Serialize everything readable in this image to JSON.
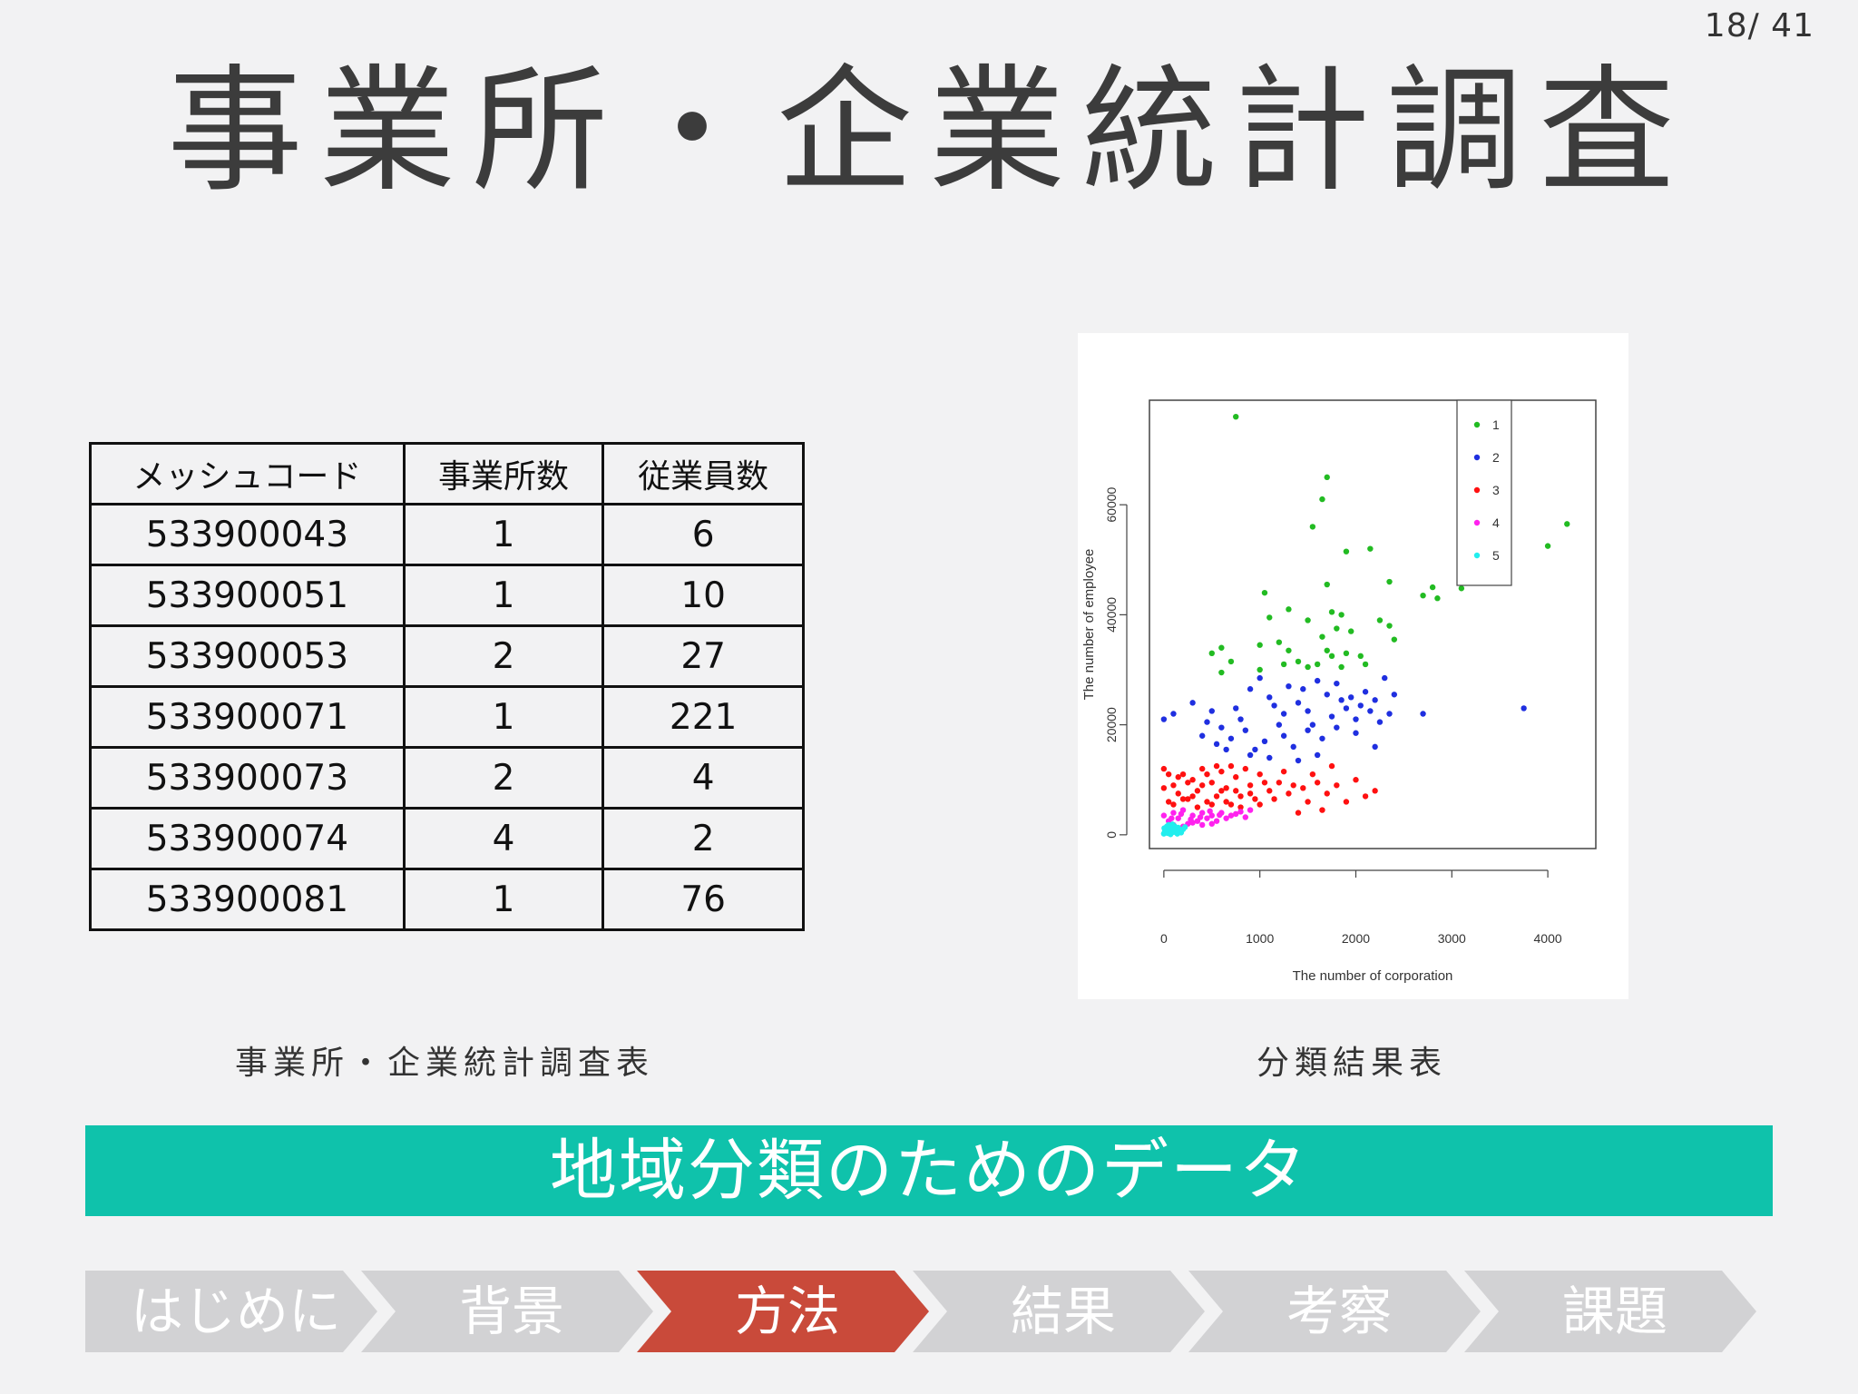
{
  "page_number": "18/ 41",
  "title": "事業所・企業統計調査",
  "table": {
    "headers": [
      "メッシュコード",
      "事業所数",
      "従業員数"
    ],
    "rows": [
      [
        "533900043",
        "1",
        "6"
      ],
      [
        "533900051",
        "1",
        "10"
      ],
      [
        "533900053",
        "2",
        "27"
      ],
      [
        "533900071",
        "1",
        "221"
      ],
      [
        "533900073",
        "2",
        "4"
      ],
      [
        "533900074",
        "4",
        "2"
      ],
      [
        "533900081",
        "1",
        "76"
      ]
    ]
  },
  "captions": {
    "left": "事業所・企業統計調査表",
    "right": "分類結果表"
  },
  "chart_data": {
    "type": "scatter",
    "xlabel": "The number of corporation",
    "ylabel": "The number of employee",
    "xlim": [
      -150,
      4500
    ],
    "ylim": [
      -2500,
      79000
    ],
    "xticks": [
      0,
      1000,
      2000,
      3000,
      4000
    ],
    "yticks": [
      0,
      20000,
      40000,
      60000
    ],
    "legend_position": "top-right",
    "series": [
      {
        "name": "1",
        "color": "#22bb22",
        "points": [
          [
            750,
            76000
          ],
          [
            1700,
            65000
          ],
          [
            1650,
            61000
          ],
          [
            1550,
            56000
          ],
          [
            2150,
            52000
          ],
          [
            1900,
            51500
          ],
          [
            4200,
            56500
          ],
          [
            4000,
            52500
          ],
          [
            2350,
            46000
          ],
          [
            2800,
            45000
          ],
          [
            3100,
            44800
          ],
          [
            2700,
            43500
          ],
          [
            2850,
            43000
          ],
          [
            1050,
            44000
          ],
          [
            1700,
            45500
          ],
          [
            1300,
            41000
          ],
          [
            1100,
            39500
          ],
          [
            1500,
            39000
          ],
          [
            1750,
            40500
          ],
          [
            1850,
            40000
          ],
          [
            2250,
            39000
          ],
          [
            2350,
            38000
          ],
          [
            2400,
            35500
          ],
          [
            1800,
            37500
          ],
          [
            1950,
            37000
          ],
          [
            1650,
            36000
          ],
          [
            1000,
            34500
          ],
          [
            500,
            33000
          ],
          [
            600,
            34000
          ],
          [
            1200,
            35000
          ],
          [
            1700,
            33500
          ],
          [
            1900,
            33000
          ],
          [
            2050,
            32500
          ],
          [
            1400,
            31500
          ],
          [
            1600,
            31000
          ],
          [
            700,
            31500
          ],
          [
            1250,
            31000
          ],
          [
            1850,
            30500
          ],
          [
            600,
            29500
          ],
          [
            1000,
            30000
          ],
          [
            1500,
            30500
          ],
          [
            2100,
            31000
          ],
          [
            1750,
            32500
          ],
          [
            1300,
            33500
          ]
        ]
      },
      {
        "name": "2",
        "color": "#1f2fe0",
        "points": [
          [
            3750,
            23000
          ],
          [
            2700,
            22000
          ],
          [
            0,
            21000
          ],
          [
            100,
            22000
          ],
          [
            300,
            24000
          ],
          [
            500,
            22500
          ],
          [
            600,
            19500
          ],
          [
            800,
            21000
          ],
          [
            900,
            26500
          ],
          [
            1000,
            28500
          ],
          [
            1100,
            25000
          ],
          [
            1150,
            23500
          ],
          [
            1200,
            20000
          ],
          [
            1300,
            27000
          ],
          [
            1400,
            24000
          ],
          [
            1500,
            22500
          ],
          [
            1600,
            28000
          ],
          [
            1700,
            25500
          ],
          [
            1800,
            27500
          ],
          [
            1900,
            23000
          ],
          [
            2000,
            21000
          ],
          [
            2100,
            26000
          ],
          [
            2200,
            24500
          ],
          [
            2300,
            28500
          ],
          [
            2350,
            22000
          ],
          [
            2400,
            25500
          ],
          [
            1050,
            17000
          ],
          [
            950,
            15500
          ],
          [
            1100,
            14000
          ],
          [
            1250,
            18000
          ],
          [
            1350,
            16000
          ],
          [
            1500,
            19000
          ],
          [
            1650,
            17500
          ],
          [
            1800,
            19500
          ],
          [
            2000,
            18500
          ],
          [
            2200,
            16000
          ],
          [
            400,
            18000
          ],
          [
            550,
            16500
          ],
          [
            700,
            17500
          ],
          [
            850,
            19000
          ],
          [
            900,
            14500
          ],
          [
            1400,
            13500
          ],
          [
            1600,
            14500
          ],
          [
            1750,
            21500
          ],
          [
            2050,
            23500
          ],
          [
            2250,
            20500
          ],
          [
            450,
            20500
          ],
          [
            750,
            23000
          ],
          [
            1450,
            26500
          ],
          [
            1950,
            25000
          ],
          [
            1250,
            22000
          ],
          [
            650,
            15500
          ],
          [
            1550,
            20000
          ],
          [
            2150,
            22500
          ],
          [
            1850,
            24500
          ]
        ]
      },
      {
        "name": "3",
        "color": "#ff1010",
        "points": [
          [
            2200,
            8000
          ],
          [
            2000,
            10000
          ],
          [
            1800,
            9000
          ],
          [
            1500,
            6000
          ],
          [
            1650,
            4500
          ],
          [
            1400,
            4000
          ],
          [
            1300,
            7500
          ],
          [
            1200,
            9500
          ],
          [
            1100,
            8000
          ],
          [
            1000,
            11000
          ],
          [
            950,
            6500
          ],
          [
            900,
            9000
          ],
          [
            850,
            12000
          ],
          [
            800,
            7000
          ],
          [
            750,
            10500
          ],
          [
            700,
            5500
          ],
          [
            650,
            8500
          ],
          [
            600,
            11500
          ],
          [
            550,
            7000
          ],
          [
            500,
            9500
          ],
          [
            450,
            6000
          ],
          [
            400,
            12000
          ],
          [
            350,
            8000
          ],
          [
            300,
            10000
          ],
          [
            250,
            6500
          ],
          [
            200,
            11000
          ],
          [
            150,
            7500
          ],
          [
            100,
            9000
          ],
          [
            50,
            6000
          ],
          [
            0,
            8500
          ],
          [
            0,
            12000
          ],
          [
            50,
            11000
          ],
          [
            100,
            5500
          ],
          [
            150,
            10500
          ],
          [
            200,
            6500
          ],
          [
            300,
            7000
          ],
          [
            400,
            9000
          ],
          [
            500,
            5500
          ],
          [
            600,
            8000
          ],
          [
            700,
            12500
          ],
          [
            800,
            5000
          ],
          [
            900,
            7500
          ],
          [
            1000,
            5500
          ],
          [
            1050,
            9500
          ],
          [
            1150,
            6500
          ],
          [
            1250,
            11500
          ],
          [
            1350,
            9000
          ],
          [
            1450,
            8500
          ],
          [
            1550,
            11000
          ],
          [
            1700,
            7500
          ],
          [
            1900,
            6000
          ],
          [
            2100,
            7000
          ],
          [
            1600,
            9500
          ],
          [
            1750,
            12500
          ],
          [
            350,
            5000
          ],
          [
            450,
            11000
          ],
          [
            250,
            9500
          ],
          [
            550,
            12500
          ],
          [
            650,
            6000
          ],
          [
            750,
            8000
          ]
        ]
      },
      {
        "name": "4",
        "color": "#ff22ee",
        "points": [
          [
            0,
            3500
          ],
          [
            50,
            2500
          ],
          [
            100,
            4000
          ],
          [
            150,
            3000
          ],
          [
            200,
            4500
          ],
          [
            250,
            2000
          ],
          [
            300,
            3500
          ],
          [
            350,
            2500
          ],
          [
            400,
            4000
          ],
          [
            450,
            3000
          ],
          [
            500,
            3500
          ],
          [
            550,
            2500
          ],
          [
            600,
            4000
          ],
          [
            650,
            3000
          ],
          [
            700,
            3500
          ],
          [
            750,
            3800
          ],
          [
            800,
            4200
          ],
          [
            850,
            3200
          ],
          [
            900,
            4500
          ],
          [
            100,
            1800
          ],
          [
            200,
            1500
          ],
          [
            300,
            2200
          ],
          [
            400,
            1800
          ],
          [
            500,
            2000
          ],
          [
            80,
            3000
          ],
          [
            180,
            3800
          ],
          [
            280,
            2800
          ],
          [
            380,
            3200
          ],
          [
            480,
            4300
          ],
          [
            580,
            3600
          ]
        ]
      },
      {
        "name": "5",
        "color": "#22eeee",
        "points": [
          [
            0,
            200
          ],
          [
            10,
            600
          ],
          [
            20,
            1000
          ],
          [
            40,
            300
          ],
          [
            60,
            800
          ],
          [
            80,
            1200
          ],
          [
            100,
            500
          ],
          [
            120,
            900
          ],
          [
            150,
            1300
          ],
          [
            180,
            400
          ],
          [
            200,
            1000
          ],
          [
            30,
            1500
          ],
          [
            70,
            100
          ],
          [
            110,
            1600
          ],
          [
            160,
            700
          ],
          [
            220,
            1400
          ],
          [
            5,
            1200
          ],
          [
            50,
            1800
          ],
          [
            140,
            200
          ],
          [
            90,
            1900
          ]
        ]
      }
    ]
  },
  "banner": "地域分類のためのデータ",
  "nav": {
    "items": [
      {
        "label": "はじめに",
        "active": false
      },
      {
        "label": "背景",
        "active": false
      },
      {
        "label": "方法",
        "active": true
      },
      {
        "label": "結果",
        "active": false
      },
      {
        "label": "考察",
        "active": false
      },
      {
        "label": "課題",
        "active": false
      }
    ]
  }
}
